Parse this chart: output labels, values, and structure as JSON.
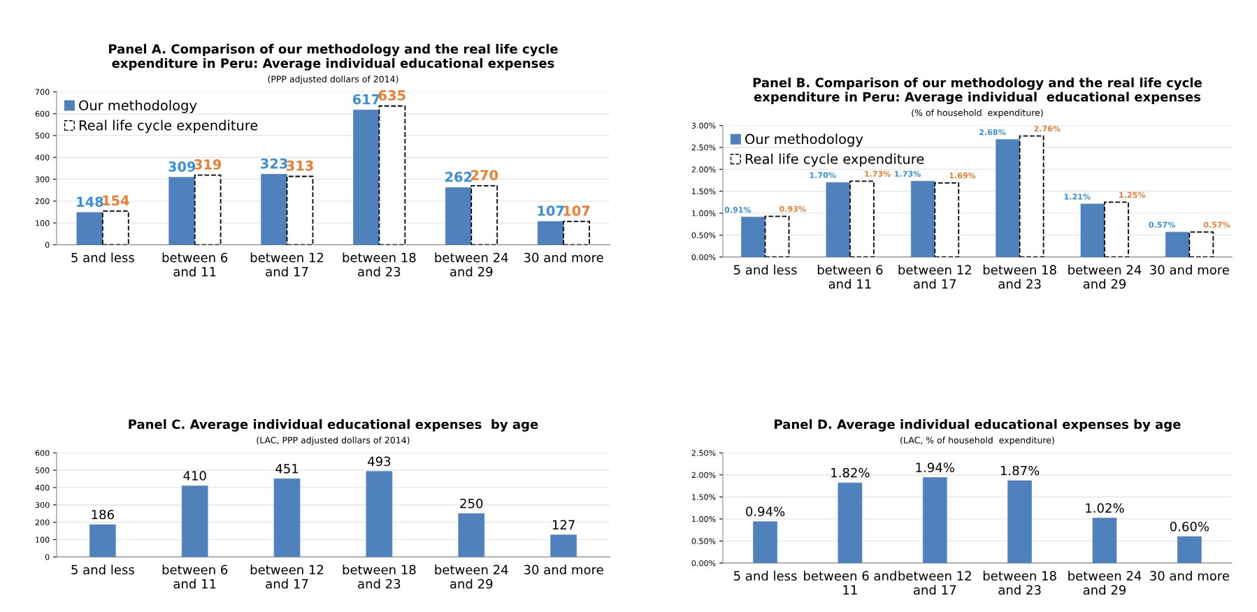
{
  "chart_data": [
    {
      "type": "bar",
      "title": "Panel A. Comparison of our methodology and the real life cycle\nexpenditure in Peru: Average individual educational expenses",
      "subtitle": "(PPP adjusted dollars of 2014)",
      "categories": [
        "5 and less",
        "between 6\nand 11",
        "between 12\nand 17",
        "between 18\nand 23",
        "between 24\nand 29",
        "30 and more"
      ],
      "series": [
        {
          "name": "Our methodology",
          "color": "#4f81bd",
          "values": [
            148,
            309,
            323,
            617,
            262,
            107
          ],
          "value_labels": [
            "148",
            "309",
            "323",
            "617",
            "262",
            "107"
          ]
        },
        {
          "name": "Real life cycle expenditure",
          "color": "#ffffff",
          "line_style": "dashed",
          "values": [
            154,
            319,
            313,
            635,
            270,
            107
          ],
          "value_labels": [
            "154",
            "319",
            "313",
            "635",
            "270",
            "107"
          ]
        }
      ],
      "ylim": [
        0,
        700
      ],
      "yticks": [
        0,
        100,
        200,
        300,
        400,
        500,
        600,
        700
      ],
      "grid": "y",
      "legend": "top left"
    },
    {
      "type": "bar",
      "title": "Panel B. Comparison of our methodology and the real life cycle\nexpenditure in Peru: Average individual  educational expenses",
      "subtitle": "(% of household  expenditure)",
      "categories": [
        "5 and less",
        "between 6\nand 11",
        "between 12\nand 17",
        "between 18\nand 23",
        "between 24\nand 29",
        "30 and more"
      ],
      "series": [
        {
          "name": "Our methodology",
          "color": "#4f81bd",
          "values": [
            0.91,
            1.7,
            1.73,
            2.68,
            1.21,
            0.57
          ],
          "value_labels": [
            "0.91%",
            "1.70%",
            "1.73%",
            "2.68%",
            "1.21%",
            "0.57%"
          ]
        },
        {
          "name": "Real life cycle expenditure",
          "color": "#ffffff",
          "line_style": "dashed",
          "values": [
            0.93,
            1.73,
            1.69,
            2.76,
            1.25,
            0.57
          ],
          "value_labels": [
            "0.93%",
            "1.73%",
            "1.69%",
            "2.76%",
            "1.25%",
            "0.57%"
          ]
        }
      ],
      "ylim": [
        0,
        3.0
      ],
      "yticks": [
        {
          "value": 0,
          "label": "0.00%"
        },
        {
          "value": 0.5,
          "label": "0.50%"
        },
        {
          "value": 1.0,
          "label": "1.00%"
        },
        {
          "value": 1.5,
          "label": "1.50%"
        },
        {
          "value": 2.0,
          "label": "2.00%"
        },
        {
          "value": 2.5,
          "label": "2.50%"
        },
        {
          "value": 3.0,
          "label": "3.00%"
        }
      ],
      "grid": "y",
      "legend": "top left"
    },
    {
      "type": "bar",
      "title": "Panel C. Average individual educational expenses  by age",
      "subtitle": "(LAC, PPP adjusted dollars of 2014)",
      "categories": [
        "5 and less",
        "between 6\nand 11",
        "between 12\nand 17",
        "between 18\nand 23",
        "between 24\nand 29",
        "30 and more"
      ],
      "series": [
        {
          "color": "#4f81bd",
          "values": [
            186,
            410,
            451,
            493,
            250,
            127
          ],
          "value_labels": [
            "186",
            "410",
            "451",
            "493",
            "250",
            "127"
          ]
        }
      ],
      "ylim": [
        0,
        600
      ],
      "yticks": [
        0,
        100,
        200,
        300,
        400,
        500,
        600
      ],
      "grid": "y"
    },
    {
      "type": "bar",
      "title": "Panel D. Average individual educational expenses by age",
      "subtitle": "(LAC, % of household  expenditure)",
      "categories": [
        "5 and less",
        "between 6 and\n11",
        "between 12\nand 17",
        "between 18\nand 23",
        "between 24\nand 29",
        "30 and more"
      ],
      "series": [
        {
          "color": "#4f81bd",
          "values": [
            0.94,
            1.82,
            1.94,
            1.87,
            1.02,
            0.6
          ],
          "value_labels": [
            "0.94%",
            "1.82%",
            "1.94%",
            "1.87%",
            "1.02%",
            "0.60%"
          ]
        }
      ],
      "ylim": [
        0,
        2.5
      ],
      "yticks": [
        {
          "value": 0,
          "label": "0.00%"
        },
        {
          "value": 0.5,
          "label": "0.50%"
        },
        {
          "value": 1.0,
          "label": "1.00%"
        },
        {
          "value": 1.5,
          "label": "1.50%"
        },
        {
          "value": 2.0,
          "label": "2.00%"
        },
        {
          "value": 2.5,
          "label": "2.50%"
        }
      ],
      "grid": "y"
    }
  ]
}
